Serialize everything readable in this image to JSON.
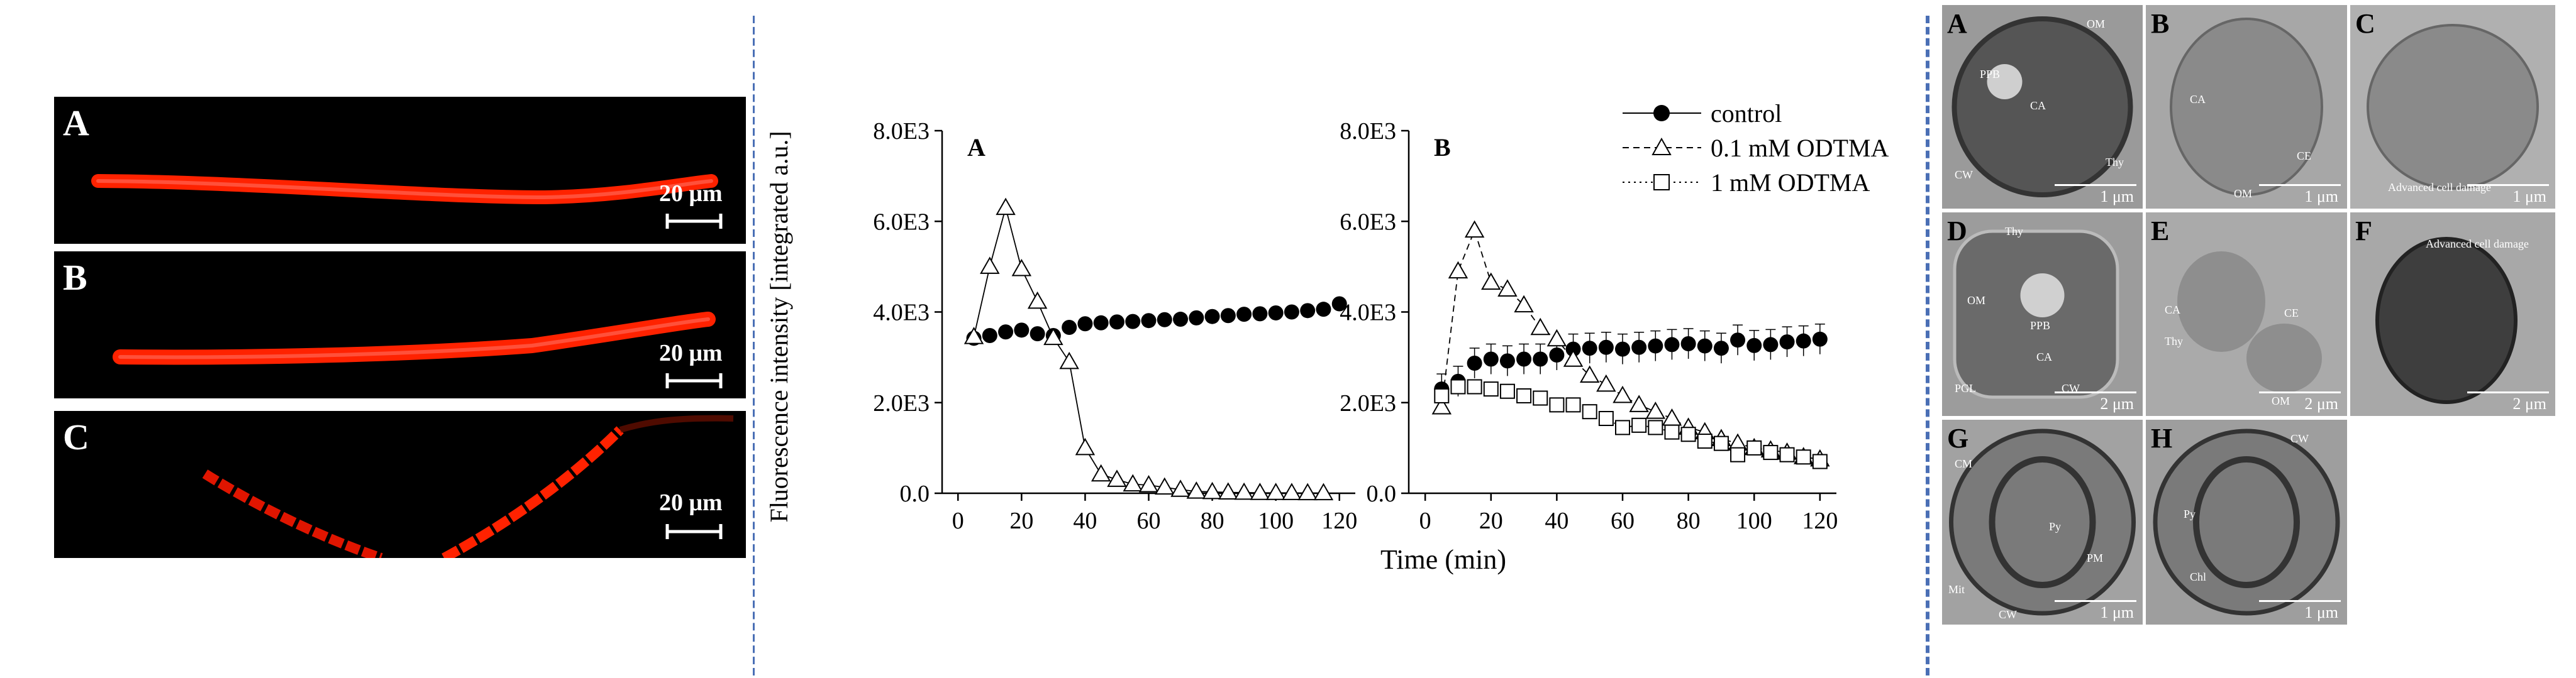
{
  "fluorescence": {
    "panels": [
      {
        "letter": "A",
        "scale": "20 μm"
      },
      {
        "letter": "B",
        "scale": "20 μm"
      },
      {
        "letter": "C",
        "scale": "20 μm"
      }
    ]
  },
  "chart_data": {
    "type": "scatter",
    "ylabel": "Fluorescence intensity [integrated a.u.]",
    "xlabel": "Time (min)",
    "legend": {
      "placement": "top-right",
      "entries": [
        "control",
        "0.1 mM ODTMA",
        "1 mM ODTMA"
      ]
    },
    "panels": [
      {
        "label": "A",
        "xlim": [
          -5,
          125
        ],
        "ylim": [
          0,
          8000
        ],
        "xticks": [
          "0",
          "20",
          "40",
          "60",
          "80",
          "100",
          "120"
        ],
        "yticks": [
          "0.0",
          "2.0E3",
          "4.0E3",
          "6.0E3",
          "8.0E3"
        ],
        "series": [
          {
            "name": "control",
            "marker": "circle-filled",
            "line": "none",
            "x": [
              5,
              10,
              15,
              20,
              25,
              30,
              35,
              40,
              45,
              50,
              55,
              60,
              65,
              70,
              75,
              80,
              85,
              90,
              95,
              100,
              105,
              110,
              115,
              120
            ],
            "y": [
              3420,
              3480,
              3560,
              3600,
              3520,
              3480,
              3660,
              3740,
              3760,
              3780,
              3790,
              3810,
              3830,
              3840,
              3870,
              3900,
              3920,
              3950,
              3960,
              3980,
              4000,
              4030,
              4060,
              4180
            ]
          },
          {
            "name": "0.1 mM ODTMA",
            "marker": "triangle-open",
            "line": "solid",
            "x": [
              5,
              10,
              15,
              20,
              25,
              30,
              35,
              40,
              45,
              50,
              55,
              60,
              65,
              70,
              75,
              80,
              85,
              90,
              95,
              100,
              105,
              110,
              115
            ],
            "y": [
              3450,
              5000,
              6300,
              4950,
              4230,
              3430,
              2900,
              1000,
              420,
              300,
              200,
              180,
              130,
              80,
              40,
              30,
              20,
              15,
              10,
              10,
              8,
              5,
              5
            ]
          }
        ]
      },
      {
        "label": "B",
        "xlim": [
          -5,
          125
        ],
        "ylim": [
          0,
          8000
        ],
        "xticks": [
          "0",
          "20",
          "40",
          "60",
          "80",
          "100",
          "120"
        ],
        "yticks": [
          "0.0",
          "2.0E3",
          "4.0E3",
          "6.0E3",
          "8.0E3"
        ],
        "series": [
          {
            "name": "control",
            "marker": "circle-filled",
            "line": "none",
            "x": [
              5,
              10,
              15,
              20,
              25,
              30,
              35,
              40,
              45,
              50,
              55,
              60,
              65,
              70,
              75,
              80,
              85,
              90,
              95,
              100,
              105,
              110,
              115,
              120
            ],
            "y": [
              2300,
              2470,
              2870,
              2960,
              2920,
              2960,
              2960,
              3050,
              3180,
              3200,
              3220,
              3180,
              3220,
              3250,
              3280,
              3300,
              3250,
              3200,
              3380,
              3260,
              3280,
              3340,
              3360,
              3400
            ]
          },
          {
            "name": "0.1 mM ODTMA",
            "marker": "triangle-open",
            "line": "dashed",
            "x": [
              5,
              10,
              15,
              20,
              25,
              30,
              35,
              40,
              45,
              50,
              55,
              60,
              65,
              70,
              75,
              80,
              85,
              90,
              95,
              100,
              105,
              110,
              115,
              120
            ],
            "y": [
              1900,
              4900,
              5800,
              4650,
              4500,
              4150,
              3650,
              3400,
              2950,
              2600,
              2400,
              2150,
              1950,
              1800,
              1650,
              1450,
              1350,
              1200,
              1100,
              1000,
              950,
              900,
              800,
              750
            ]
          },
          {
            "name": "1 mM ODTMA",
            "marker": "square-open",
            "line": "dotted",
            "x": [
              5,
              10,
              15,
              20,
              25,
              30,
              35,
              40,
              45,
              50,
              55,
              60,
              65,
              70,
              75,
              80,
              85,
              90,
              95,
              100,
              105,
              110,
              115,
              120
            ],
            "y": [
              2150,
              2350,
              2350,
              2300,
              2250,
              2150,
              2100,
              1950,
              1950,
              1800,
              1650,
              1450,
              1500,
              1450,
              1350,
              1300,
              1150,
              1100,
              850,
              1000,
              900,
              850,
              800,
              700
            ]
          }
        ]
      }
    ]
  },
  "tem": {
    "panels": [
      {
        "letter": "A",
        "scale": "1 μm",
        "labels": [
          "OM",
          "PPB",
          "CA",
          "CW",
          "Thy"
        ]
      },
      {
        "letter": "B",
        "scale": "1 μm",
        "labels": [
          "CA",
          "CE",
          "OM"
        ]
      },
      {
        "letter": "C",
        "scale": "1 μm",
        "labels": [
          "Advanced cell damage"
        ]
      },
      {
        "letter": "D",
        "scale": "2 μm",
        "labels": [
          "Thy",
          "OM",
          "PPB",
          "CA",
          "PGL",
          "CW"
        ]
      },
      {
        "letter": "E",
        "scale": "2 μm",
        "labels": [
          "CA",
          "CE",
          "Thy",
          "OM"
        ]
      },
      {
        "letter": "F",
        "scale": "2 μm",
        "labels": [
          "Advanced cell damage"
        ]
      },
      {
        "letter": "G",
        "scale": "1 μm",
        "labels": [
          "CM",
          "Py",
          "PM",
          "Mit",
          "CW"
        ]
      },
      {
        "letter": "H",
        "scale": "1 μm",
        "labels": [
          "CW",
          "Py",
          "Chl"
        ]
      }
    ]
  },
  "colors": {
    "divider": "#4a6fb5",
    "fluorescence": "#ff1a00",
    "tem_background": "#a3a3a3"
  }
}
